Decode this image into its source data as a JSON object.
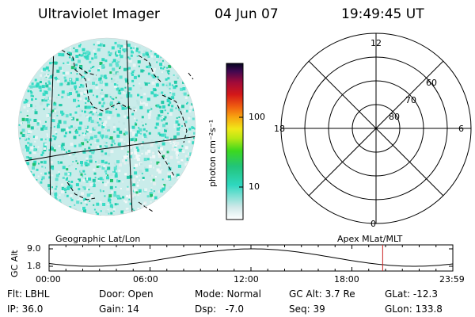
{
  "header": {
    "instrument": "Ultraviolet Imager",
    "date": "04 Jun 07",
    "time": "19:49:45 UT"
  },
  "colorbar": {
    "unit_label": "photon cm⁻²s⁻¹",
    "ticks": [
      "100",
      "10"
    ]
  },
  "polar_plot": {
    "mlt_labels": {
      "top": "12",
      "left": "18",
      "right": "6",
      "bottom": "0"
    },
    "lat_labels": [
      "60",
      "70",
      "80"
    ]
  },
  "timeline": {
    "left_title": "Geographic Lat/Lon",
    "right_title": "Apex MLat/MLT",
    "y_axis_label": "GC Alt",
    "y_ticks": [
      "9.0",
      "1.8"
    ],
    "x_ticks": [
      "00:00",
      "06:00",
      "12:00",
      "18:00",
      "23:59"
    ],
    "marker_time": "19:49:45",
    "marker_color": "#cc2222"
  },
  "info": {
    "flt": "Flt: LBHL",
    "door": "Door: Open",
    "mode": "Mode: Normal",
    "gc_alt": "GC Alt: 3.7 Re",
    "glat": "GLat: -12.3",
    "ip": "IP: 36.0",
    "gain": "Gain: 14",
    "dsp": "Dsp:   -7.0",
    "seq": "Seq: 39",
    "glon": "GLon: 133.8"
  }
}
